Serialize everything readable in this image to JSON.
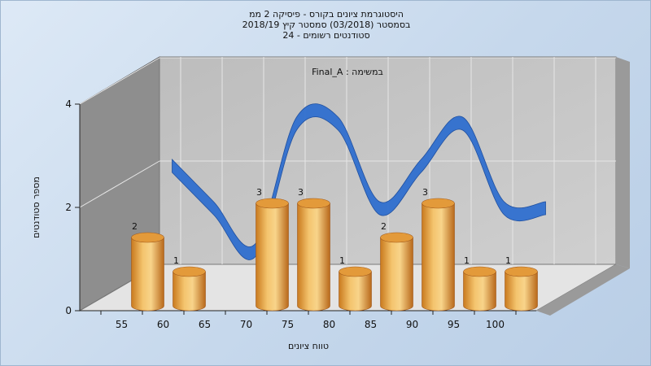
{
  "chart_data": {
    "type": "bar",
    "title_lines": [
      "היסטוגרמת ציונים בקורס - פיסיקה 2 ממ",
      "בסמסטר (03/2018) סמסטר קיץ 2018/19",
      "סטודנטים רשומים - 24"
    ],
    "annotation": "במשימה : Final_A",
    "xlabel": "טווח ציונים",
    "ylabel": "מספר סטודנטים",
    "categories": [
      "55",
      "60",
      "65",
      "70",
      "75",
      "80",
      "85",
      "90",
      "95",
      "100"
    ],
    "values": [
      2,
      1,
      0,
      3,
      3,
      1,
      2,
      3,
      1,
      1
    ],
    "data_labels": [
      "2",
      "1",
      "",
      "3",
      "3",
      "1",
      "2",
      "3",
      "1",
      "1"
    ],
    "yticks": [
      "0",
      "2",
      "4"
    ],
    "ylim": [
      0,
      4
    ],
    "grid": true,
    "trend_line": true,
    "colors": {
      "bar": "#e8a040",
      "trend": "#2f6fcf",
      "wall": "#c4c4c4",
      "side_wall": "#8e8e8e",
      "floor": "#e6e6e6",
      "background": "#c6d8ec"
    }
  }
}
